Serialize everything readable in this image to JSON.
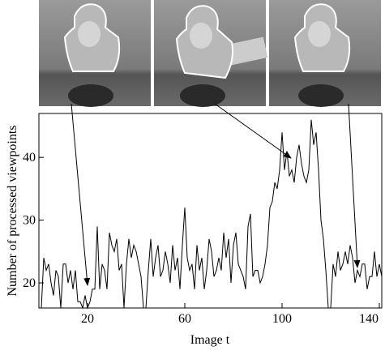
{
  "chart_data": {
    "type": "line",
    "x_label": "Image t",
    "y_label": "Number of processed viewpoints",
    "x": [
      1,
      2,
      3,
      4,
      5,
      6,
      7,
      8,
      9,
      10,
      11,
      12,
      13,
      14,
      15,
      16,
      17,
      18,
      19,
      20,
      21,
      22,
      23,
      24,
      25,
      26,
      27,
      28,
      29,
      30,
      31,
      32,
      33,
      34,
      35,
      36,
      37,
      38,
      39,
      40,
      41,
      42,
      43,
      44,
      45,
      46,
      47,
      48,
      49,
      50,
      51,
      52,
      53,
      54,
      55,
      56,
      57,
      58,
      59,
      60,
      61,
      62,
      63,
      64,
      65,
      66,
      67,
      68,
      69,
      70,
      71,
      72,
      73,
      74,
      75,
      76,
      77,
      78,
      79,
      80,
      81,
      82,
      83,
      84,
      85,
      86,
      87,
      88,
      89,
      90,
      91,
      92,
      93,
      94,
      95,
      96,
      97,
      98,
      99,
      100,
      101,
      102,
      103,
      104,
      105,
      106,
      107,
      108,
      109,
      110,
      111,
      112,
      113,
      114,
      115,
      116,
      117,
      118,
      119,
      120,
      121,
      122,
      123,
      124,
      125,
      126,
      127,
      128,
      129,
      130,
      131,
      132,
      133,
      134,
      135,
      136,
      137,
      138,
      139,
      140,
      141
    ],
    "series": [
      {
        "color": "#000000",
        "values": [
          16,
          24,
          22,
          23,
          20,
          18,
          22,
          21,
          16,
          23,
          23,
          20,
          22,
          19,
          22,
          17,
          17,
          16,
          18,
          16,
          17,
          19,
          19,
          29,
          19,
          23,
          22,
          19,
          28,
          26,
          25,
          27,
          22,
          23,
          16,
          23,
          27,
          24,
          26,
          25,
          23,
          21,
          16,
          16,
          22,
          27,
          21,
          24,
          26,
          21,
          22,
          25,
          23,
          20,
          26,
          22,
          24,
          19,
          26,
          32,
          24,
          22,
          23,
          19,
          26,
          22,
          24,
          19,
          22,
          27,
          25,
          21,
          22,
          24,
          22,
          28,
          24,
          27,
          20,
          26,
          28,
          23,
          22,
          21,
          19,
          29,
          31,
          21,
          22,
          22,
          20,
          21,
          23,
          26,
          32,
          33,
          36,
          35,
          38,
          44,
          38,
          41,
          37,
          38,
          36,
          40,
          42,
          39,
          37,
          36,
          38,
          46,
          42,
          44,
          38,
          30,
          27,
          22,
          16,
          16,
          23,
          21,
          25,
          22,
          23,
          25,
          23,
          26,
          24,
          20,
          22,
          21,
          23,
          23,
          19,
          21,
          21,
          25,
          21,
          23,
          21
        ]
      }
    ],
    "xlim": [
      0,
      141
    ],
    "ylim": [
      16,
      47
    ],
    "xticks": [
      20,
      60,
      100,
      140
    ],
    "yticks": [
      20,
      30,
      40
    ]
  }
}
